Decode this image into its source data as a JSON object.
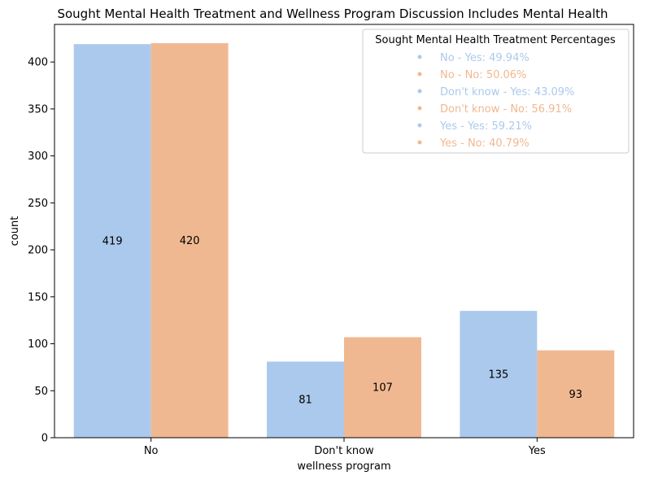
{
  "chart_data": {
    "type": "bar",
    "title": "Sought Mental Health Treatment and Wellness Program Discussion Includes Mental Health",
    "xlabel": "wellness program",
    "ylabel": "count",
    "categories": [
      "No",
      "Don't know",
      "Yes"
    ],
    "ylim": [
      0,
      440
    ],
    "yticks": [
      0,
      50,
      100,
      150,
      200,
      250,
      300,
      350,
      400
    ],
    "series": [
      {
        "name": "Yes",
        "color": "#abc9ec",
        "values": [
          419,
          81,
          135
        ]
      },
      {
        "name": "No",
        "color": "#f0b891",
        "values": [
          420,
          107,
          93
        ]
      }
    ],
    "bar_labels": [
      [
        "419",
        "81",
        "135"
      ],
      [
        "420",
        "107",
        "93"
      ]
    ],
    "legend": {
      "position": "top-right",
      "title": "Sought Mental Health Treatment Percentages",
      "entries": [
        {
          "text": "No - Yes: 49.94%",
          "color": "#abc9ec"
        },
        {
          "text": "No - No: 50.06%",
          "color": "#f0b891"
        },
        {
          "text": "Don't know - Yes: 43.09%",
          "color": "#abc9ec"
        },
        {
          "text": "Don't know - No: 56.91%",
          "color": "#f0b891"
        },
        {
          "text": "Yes - Yes: 59.21%",
          "color": "#abc9ec"
        },
        {
          "text": "Yes - No: 40.79%",
          "color": "#f0b891"
        }
      ]
    },
    "grid": false
  }
}
